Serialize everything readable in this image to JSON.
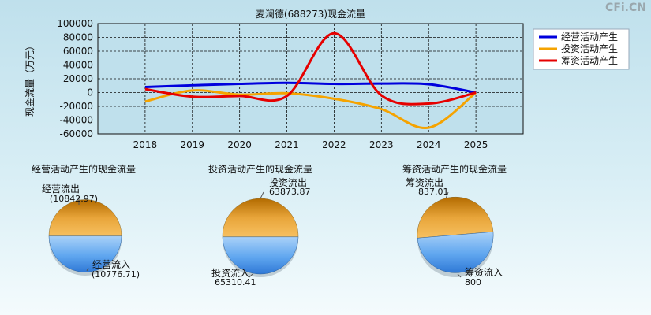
{
  "watermark": "CFi.CN",
  "chart_data": [
    {
      "type": "line",
      "title": "麦澜德(688273)现金流量",
      "ylabel": "现金流量（万元）",
      "x": [
        "2018",
        "2019",
        "2020",
        "2021",
        "2022",
        "2023",
        "2024",
        "2025"
      ],
      "xlim": [
        2017.0,
        2026.0
      ],
      "ylim": [
        -60000,
        100000
      ],
      "yticks": [
        100000,
        80000,
        60000,
        40000,
        20000,
        0,
        -20000,
        -40000,
        -60000
      ],
      "grid": true,
      "legend_position": "top-right",
      "series": [
        {
          "name": "经营活动产生",
          "color": "#0000dd",
          "values": [
            8000,
            10500,
            12500,
            14000,
            12500,
            13000,
            12000,
            0
          ]
        },
        {
          "name": "投资活动产生",
          "color": "#f5a300",
          "values": [
            -13000,
            3000,
            -3000,
            -1000,
            -9000,
            -24000,
            -51000,
            0
          ]
        },
        {
          "name": "筹资活动产生",
          "color": "#e60000",
          "values": [
            5000,
            -6000,
            -5000,
            -5000,
            86000,
            -4000,
            -16000,
            0
          ]
        }
      ]
    },
    {
      "type": "pie",
      "title": "经营活动产生的现金流量",
      "slices": [
        {
          "label": "经营流出",
          "value": 10842.97,
          "value_text": "(10842.97)"
        },
        {
          "label": "经营流入",
          "value": 10776.71,
          "value_text": "(10776.71)"
        }
      ]
    },
    {
      "type": "pie",
      "title": "投资活动产生的现金流量",
      "slices": [
        {
          "label": "投资流出",
          "value": 63873.87,
          "value_text": "63873.87"
        },
        {
          "label": "投资流入",
          "value": 65310.41,
          "value_text": "65310.41"
        }
      ]
    },
    {
      "type": "pie",
      "title": "筹资活动产生的现金流量",
      "slices": [
        {
          "label": "筹资流出",
          "value": 837.01,
          "value_text": "837.01"
        },
        {
          "label": "筹资流入",
          "value": 800,
          "value_text": "800"
        }
      ]
    }
  ]
}
